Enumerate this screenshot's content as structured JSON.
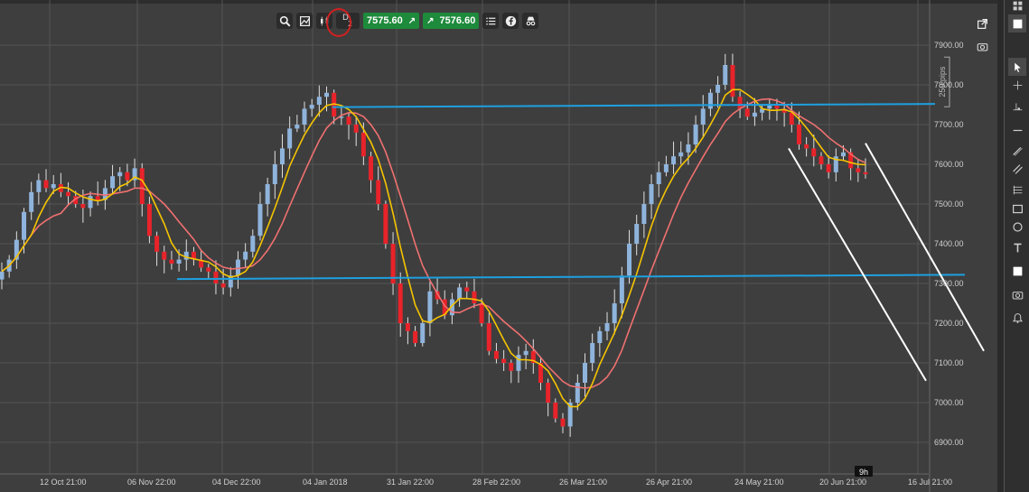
{
  "toolbar": {
    "timeframe_letter": "D",
    "timeframe_number": "2",
    "sell_price": "7575.60",
    "buy_price": "7576.60",
    "icons": [
      "zoom-icon",
      "indicators-icon",
      "chart-type-icon",
      "timeframe-icon",
      "list-icon",
      "facebook-icon",
      "incognito-icon"
    ]
  },
  "chart_top_icons": [
    "popout-icon",
    "camera-icon"
  ],
  "pips_label": "250 pips",
  "time_badge": "9h",
  "y_axis_labels": [
    "7900.00",
    "7800.00",
    "7700.00",
    "7600.00",
    "7500.00",
    "7400.00",
    "7300.00",
    "7200.00",
    "7100.00",
    "7000.00",
    "6900.00"
  ],
  "x_axis_labels": [
    "12 Oct 21:00",
    "06 Nov 22:00",
    "04 Dec 22:00",
    "04 Jan 2018",
    "31 Jan 22:00",
    "28 Feb 22:00",
    "26 Mar 21:00",
    "26 Apr 21:00",
    "24 May 21:00",
    "20 Jun 21:00",
    "16 Jul 21:00"
  ],
  "sidebar_tools": [
    "layout-grid-icon",
    "square-icon",
    "cursor-icon",
    "crosshair-icon",
    "anchor-line-icon",
    "horizontal-line-icon",
    "trend-line-icon",
    "channel-icon",
    "fibonacci-icon",
    "rectangle-icon",
    "circle-icon",
    "text-icon",
    "fill-icon",
    "screenshot-icon",
    "alert-bell-icon"
  ],
  "colors": {
    "background": "#3e3e3e",
    "grid": "#545454",
    "bull_candle": "#8fb4dc",
    "bear_candle": "#e8232a",
    "ma_fast": "#f5c400",
    "ma_slow": "#f07070",
    "support_resistance": "#1ea0e0",
    "channel": "#ffffff",
    "buy_sell": "#1e8a3c"
  },
  "chart_data": {
    "type": "candlestick",
    "instrument_price_now": 7575.6,
    "ylim": [
      6850,
      7930
    ],
    "y_ticks": [
      6900,
      7000,
      7100,
      7200,
      7300,
      7400,
      7500,
      7600,
      7700,
      7800,
      7900
    ],
    "horizontal_levels": [
      7310,
      7750
    ],
    "candles_close_approx": [
      7330,
      7360,
      7410,
      7480,
      7530,
      7560,
      7540,
      7550,
      7530,
      7520,
      7500,
      7490,
      7520,
      7510,
      7540,
      7570,
      7580,
      7560,
      7590,
      7500,
      7420,
      7380,
      7360,
      7350,
      7360,
      7380,
      7360,
      7340,
      7330,
      7300,
      7290,
      7320,
      7360,
      7380,
      7420,
      7500,
      7550,
      7600,
      7640,
      7690,
      7700,
      7740,
      7750,
      7770,
      7780,
      7720,
      7720,
      7700,
      7680,
      7620,
      7560,
      7500,
      7400,
      7300,
      7200,
      7180,
      7150,
      7200,
      7280,
      7260,
      7220,
      7260,
      7290,
      7280,
      7250,
      7200,
      7130,
      7110,
      7100,
      7080,
      7120,
      7130,
      7100,
      7050,
      7000,
      6960,
      6940,
      7000,
      7050,
      7100,
      7150,
      7180,
      7200,
      7250,
      7320,
      7400,
      7450,
      7500,
      7550,
      7580,
      7600,
      7620,
      7630,
      7650,
      7700,
      7740,
      7780,
      7800,
      7850,
      7770,
      7740,
      7720,
      7730,
      7740,
      7750,
      7740,
      7730,
      7700,
      7650,
      7640,
      7620,
      7600,
      7580,
      7620,
      7630,
      7590,
      7580,
      7575
    ]
  }
}
